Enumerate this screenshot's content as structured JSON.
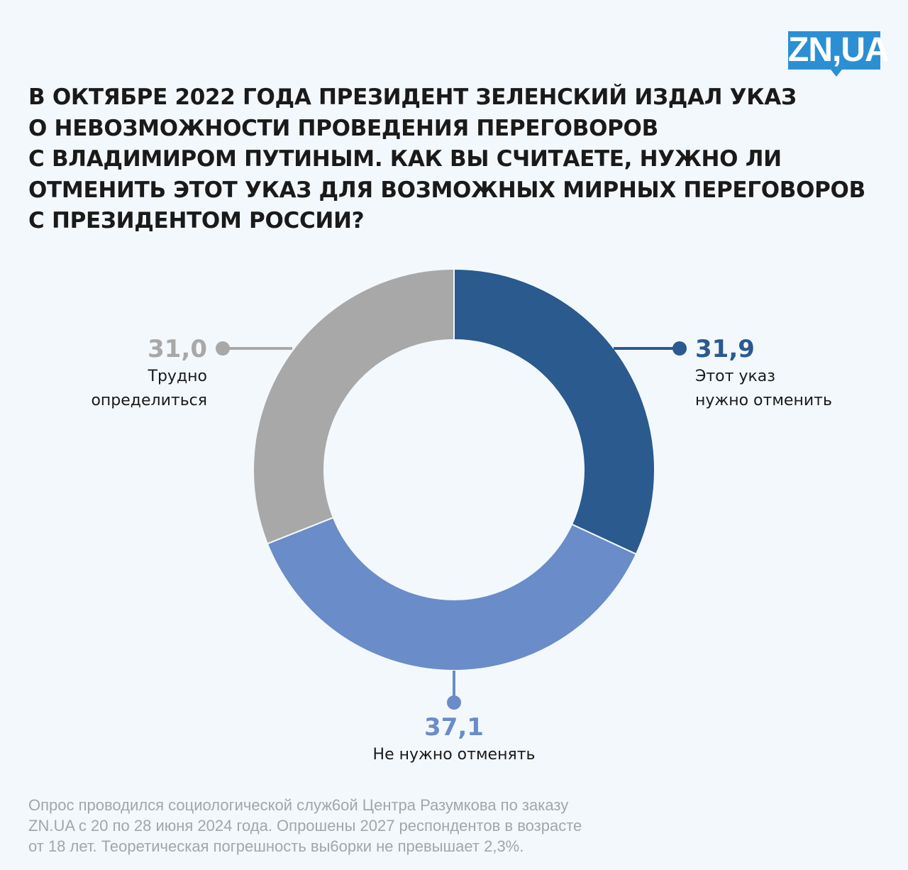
{
  "logo": "ZN,UA",
  "title_lines": [
    "В ОКТЯБРЕ 2022 ГОДА ПРЕЗИДЕНТ ЗЕЛЕНСКИЙ ИЗДАЛ УКАЗ",
    "О НЕВОЗМОЖНОСТИ ПРОВЕДЕНИЯ ПЕРЕГОВОРОВ",
    "С ВЛАДИМИРОМ ПУТИНЫМ. КАК ВЫ СЧИТАЕТЕ, НУЖНО ЛИ",
    "ОТМЕНИТЬ ЭТОТ УКАЗ ДЛЯ ВОЗМОЖНЫХ МИРНЫХ ПЕРЕГОВОРОВ",
    "С ПРЕЗИДЕНТОМ РОССИИ?"
  ],
  "chart_data": {
    "type": "pie",
    "donut": true,
    "title": "В ОКТЯБРЕ 2022 ГОДА ПРЕЗИДЕНТ ЗЕЛЕНСКИЙ ИЗДАЛ УКАЗ О НЕВОЗМОЖНОСТИ ПРОВЕДЕНИЯ ПЕРЕГОВОРОВ С ВЛАДИМИРОМ ПУТИНЫМ. КАК ВЫ СЧИТАЕТЕ, НУЖНО ЛИ ОТМЕНИТЬ ЭТОТ УКАЗ ДЛЯ ВОЗМОЖНЫХ МИРНЫХ ПЕРЕГОВОРОВ С ПРЕЗИДЕНТОМ РОССИИ?",
    "slices": [
      {
        "label_lines": [
          "Этот указ",
          "нужно отменить"
        ],
        "value": 31.9,
        "value_text": "31,9",
        "color": "#2a5a8e"
      },
      {
        "label_lines": [
          "Не нужно отменять"
        ],
        "value": 37.1,
        "value_text": "37,1",
        "color": "#6a8cc8"
      },
      {
        "label_lines": [
          "Трудно",
          "определиться"
        ],
        "value": 31.0,
        "value_text": "31,0",
        "color": "#a8a8a8"
      }
    ]
  },
  "footnote_lines": [
    "Опрос проводился социологической служ6ой Центра Разумкова по заказу",
    "ZN.UA с 20 по 28 июня 2024 года. Опрошены 2027 респондентов в возрасте",
    "от 18 лет. Теоретическая погрешность вы6орки не превышает 2,3%."
  ]
}
